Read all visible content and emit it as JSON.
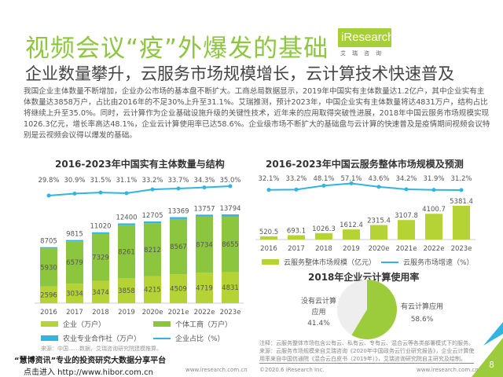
{
  "header": {
    "title": "视频会议“疫”外爆发的基础",
    "subtitle": "企业数量攀升，云服务市场规模增长，云计算技术快速普及",
    "logo": "iResearch",
    "logo_cn": "艾瑞咨询"
  },
  "body_text": "我国企业主体数量不断增加，企业办公市场的基本盘不断扩大。工商总局数据显示，2019年中国实有主体数量达1.2亿户，其中企业实有主体数量达3858万户，占比由2016年的不足30%上升至31.1%。艾瑞推测，预计2023年，中国企业实有主体数量将达4831万户，结构占比将继续上升至35.0%。同时，云计算作为企业基础设施升级的关键性技术，近年来的应用取得突破性进展，2018年中国云服务市场规模实现1026.3亿元，增长率高达48.1%，企业云计算使用率已达58.6%。企业级市场不断扩大的基础盘与云计算的快速普及是疫情期间视频会议特别是云视频会议得以爆发的基础。",
  "colors": {
    "enterprise": "#b5d334",
    "individual": "#8cc63e",
    "coop": "#31b5e0",
    "line": "#31b5e0",
    "pie_yes": "#9ccb3b",
    "pie_no": "#eeeeee",
    "accent": "#8dc63f"
  },
  "chart_data": [
    {
      "type": "bar",
      "stacked": true,
      "title": "2016-2023年中国实有主体数量与结构",
      "categories": [
        "2016",
        "2017",
        "2018",
        "2019",
        "2020e",
        "2021e",
        "2022e",
        "2023e"
      ],
      "totals": [
        8705,
        9815,
        11020,
        12400,
        12705,
        13369,
        13757,
        13794
      ],
      "series": [
        {
          "name": "企业（万户）",
          "values": [
            2596,
            3034,
            3474,
            3858,
            4215,
            4509,
            4719,
            4831
          ]
        },
        {
          "name": "个体工商（万户）",
          "values": [
            5930,
            6579,
            7329,
            8261,
            8212,
            8567,
            8734,
            8655
          ]
        },
        {
          "name": "农业专业合作社（万户）",
          "values": [
            179,
            202,
            217,
            281,
            278,
            293,
            304,
            308
          ]
        },
        {
          "name": "企业占比（%）",
          "type": "line",
          "values": [
            29.8,
            30.9,
            31.5,
            31.1,
            33.2,
            33.7,
            34.3,
            35.0
          ],
          "labels": [
            "29.8%",
            "30.9%",
            "31.5%",
            "31.1%",
            "33.2%",
            "33.7%",
            "34.3%",
            "35.0%"
          ]
        }
      ],
      "legend": "bottom",
      "source": "来源：中国……数据，艾瑞咨询研究院建模推算。"
    },
    {
      "type": "bar",
      "title": "2016-2023年中国云服务整体市场规模及预测",
      "categories": [
        "2016",
        "2017",
        "2018",
        "2019",
        "2020e",
        "2021e",
        "2022e",
        "2023e"
      ],
      "series": [
        {
          "name": "云服务整体市场规模（亿元）",
          "values": [
            520.5,
            693.1,
            1026.3,
            1612.4,
            2315.4,
            3107.8,
            4100.7,
            5381.4
          ]
        },
        {
          "name": "云服务市场增速（%）",
          "type": "line",
          "values": [
            32.1,
            33.2,
            48.1,
            57.1,
            43.6,
            34.2,
            31.9,
            31.2
          ],
          "labels": [
            "32.1%",
            "33.2%",
            "48.1%",
            "57.1%",
            "43.6%",
            "34.2%",
            "31.9%",
            "31.2%"
          ]
        }
      ],
      "legend": "bottom"
    },
    {
      "type": "pie",
      "title": "2018年企业云计算使用率",
      "slices": [
        {
          "label": "有云计算应用",
          "value": 58.6,
          "text": "58.6%"
        },
        {
          "label_lines": [
            "没有云计算",
            "应用"
          ],
          "value": 41.4,
          "text": "41.4%"
        }
      ]
    }
  ],
  "notes": [
    "注释：云服务整体市场包含公有云、私有云、专有云、混合云等各类部署模式下的服务。",
    "来源：云服务市场规模来自艾瑞咨询《2020年中国政务云行业研究报告》，企业云计算使",
    "用率来自中国信通院《混合云白皮书（2019年）》，艾瑞咨询研究院自主研究及绘制。"
  ],
  "footer": {
    "copyright": "©2020.6 iResearch Inc.",
    "url": "www.iresearch.com.cn",
    "page": "8"
  },
  "watermark": {
    "text": "“慧博资讯”专业的投资研究大数据分享平台",
    "link": "点击进入 http://www.hibor.com.cn"
  }
}
